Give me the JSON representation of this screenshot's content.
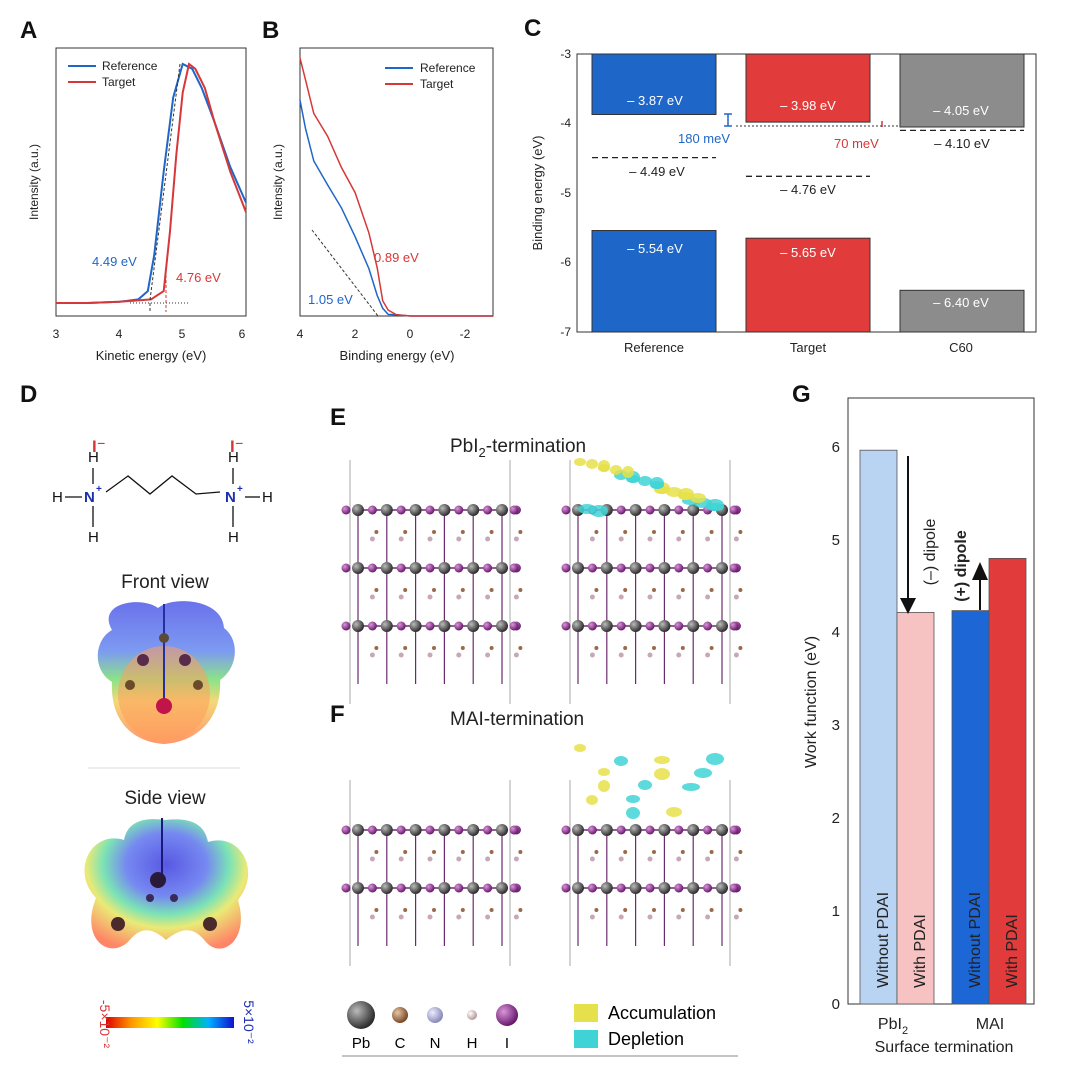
{
  "panels": {
    "A": "A",
    "B": "B",
    "C": "C",
    "D": "D",
    "E": "E",
    "F": "F",
    "G": "G"
  },
  "colors": {
    "reference": "#1f66c9",
    "target": "#e23b3b",
    "c60": "#8c8c8c",
    "pbi2_without": "#b9d3f2",
    "pbi2_with": "#f7c2c2",
    "mai_without": "#1c66d6",
    "mai_with": "#e23b3b",
    "accumulation": "#e6e04a",
    "depletion": "#3fd3d6"
  },
  "panelA": {
    "xlabel": "Kinetic energy (eV)",
    "ylabel": "Intensity (a.u.)",
    "xticks": [
      "3",
      "4",
      "5",
      "6"
    ],
    "legend": [
      "Reference",
      "Target"
    ],
    "annot_ref": "4.49 eV",
    "annot_tgt": "4.76 eV"
  },
  "panelB": {
    "xlabel": "Binding energy (eV)",
    "ylabel": "Intensity (a.u.)",
    "xticks": [
      "4",
      "2",
      "0",
      "-2"
    ],
    "legend": [
      "Reference",
      "Target"
    ],
    "annot_ref": "1.05 eV",
    "annot_tgt": "0.89 eV"
  },
  "panelC": {
    "ylabel": "Binding energy (eV)",
    "yticks": [
      "-3",
      "-4",
      "-5",
      "-6",
      "-7"
    ],
    "categories": [
      "Reference",
      "Target",
      "C60"
    ],
    "cb_labels": [
      "– 3.87 eV",
      "– 3.98 eV",
      "– 4.05 eV"
    ],
    "vb_labels": [
      "– 5.54 eV",
      "– 5.65 eV",
      "– 6.40 eV"
    ],
    "ef_labels": [
      "– 4.49 eV",
      "– 4.76 eV",
      "– 4.10 eV"
    ],
    "offset_ref": "180 meV",
    "offset_tgt": "70 meV"
  },
  "panelD": {
    "anion_left": "I⁻",
    "anion_right": "I⁻",
    "front_view": "Front view",
    "side_view": "Side view",
    "scale_min": "-5×10⁻²",
    "scale_max": "5×10⁻²"
  },
  "panelE": {
    "title_pre": "PbI",
    "title_sub": "2",
    "title_post": "-termination"
  },
  "panelF": {
    "title": "MAI-termination"
  },
  "legendEF": {
    "atoms": [
      "Pb",
      "C",
      "N",
      "H",
      "I"
    ],
    "accumulation": "Accumulation",
    "depletion": "Depletion"
  },
  "panelG": {
    "ylabel": "Work function (eV)",
    "xlabel": "Surface termination",
    "yticks": [
      "0",
      "1",
      "2",
      "3",
      "4",
      "5",
      "6"
    ],
    "group1_pre": "PbI",
    "group1_sub": "2",
    "group2": "MAI",
    "bar_labels": [
      "Without PDAI",
      "With PDAI",
      "Without PDAI",
      "With PDAI"
    ],
    "dipole_neg": "(–) dipole",
    "dipole_pos": "(+) dipole"
  },
  "chart_data": [
    {
      "type": "line",
      "panel": "A",
      "xlabel": "Kinetic energy (eV)",
      "ylabel": "Intensity (a.u.)",
      "xlim": [
        3,
        6
      ],
      "series": [
        {
          "name": "Reference",
          "x": [
            3.0,
            3.5,
            4.0,
            4.3,
            4.45,
            4.55,
            4.7,
            4.85,
            5.0,
            5.15,
            5.3,
            5.5,
            5.75,
            6.0
          ],
          "y": [
            0.0,
            0.0,
            0.005,
            0.015,
            0.05,
            0.2,
            0.55,
            0.86,
            1.0,
            0.98,
            0.9,
            0.76,
            0.57,
            0.42
          ]
        },
        {
          "name": "Target",
          "x": [
            3.0,
            3.5,
            4.0,
            4.5,
            4.7,
            4.8,
            4.9,
            5.0,
            5.1,
            5.2,
            5.35,
            5.5,
            5.75,
            6.0
          ],
          "y": [
            0.0,
            0.0,
            0.005,
            0.015,
            0.05,
            0.3,
            0.62,
            0.88,
            1.0,
            0.98,
            0.9,
            0.76,
            0.55,
            0.38
          ]
        }
      ],
      "annotations": [
        "4.49 eV",
        "4.76 eV"
      ]
    },
    {
      "type": "line",
      "panel": "B",
      "xlabel": "Binding energy (eV)",
      "ylabel": "Intensity (a.u.)",
      "xlim": [
        4,
        -3
      ],
      "series": [
        {
          "name": "Reference",
          "x": [
            4.0,
            3.8,
            3.5,
            3.0,
            2.5,
            2.0,
            1.5,
            1.2,
            1.0,
            0.8,
            0.5,
            0.0,
            -1.0,
            -2.0,
            -3.0
          ],
          "y": [
            0.92,
            0.8,
            0.66,
            0.56,
            0.46,
            0.34,
            0.2,
            0.09,
            0.03,
            0.01,
            0.005,
            0.0,
            0.0,
            0.0,
            0.0
          ]
        },
        {
          "name": "Target",
          "x": [
            4.0,
            3.8,
            3.5,
            3.0,
            2.5,
            2.0,
            1.5,
            1.2,
            1.0,
            0.8,
            0.5,
            0.0,
            -1.0,
            -2.0,
            -3.0
          ],
          "y": [
            1.1,
            1.0,
            0.87,
            0.76,
            0.64,
            0.52,
            0.36,
            0.2,
            0.07,
            0.02,
            0.005,
            0.0,
            0.0,
            0.0,
            0.0
          ]
        }
      ],
      "annotations": [
        "1.05 eV",
        "0.89 eV"
      ]
    },
    {
      "type": "bar",
      "panel": "C",
      "ylabel": "Binding energy (eV)",
      "ylim": [
        -7,
        -3
      ],
      "categories": [
        "Reference",
        "Target",
        "C60"
      ],
      "series": [
        {
          "name": "CB",
          "values": [
            -3.87,
            -3.98,
            -4.05
          ]
        },
        {
          "name": "VB",
          "values": [
            -5.54,
            -5.65,
            -6.4
          ]
        },
        {
          "name": "EF",
          "values": [
            -4.49,
            -4.76,
            -4.1
          ]
        }
      ]
    },
    {
      "type": "bar",
      "panel": "G",
      "ylabel": "Work function (eV)",
      "xlabel": "Surface termination",
      "ylim": [
        0,
        6.5
      ],
      "categories": [
        "Without PDAI",
        "With PDAI",
        "Without PDAI",
        "With PDAI"
      ],
      "values": [
        5.94,
        4.2,
        4.22,
        4.78
      ]
    }
  ]
}
